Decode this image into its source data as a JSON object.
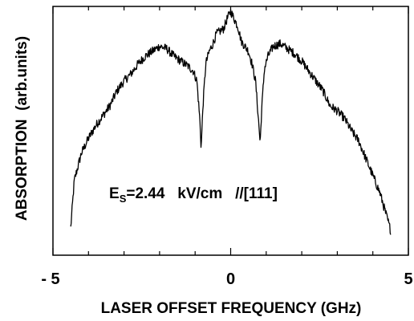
{
  "chart_data": {
    "type": "line",
    "title": "",
    "xlabel": "LASER OFFSET FREQUENCY (GHz)",
    "ylabel": "ABSORPTION  (arb.units)",
    "xlim": [
      -5,
      5
    ],
    "ylim": [
      0,
      1
    ],
    "x_ticks": [
      -5,
      0,
      5
    ],
    "x_tick_labels": [
      "- 5",
      "0",
      "5"
    ],
    "y_tick_labels": [],
    "grid": false,
    "legend": "none",
    "annotation": {
      "prefix": "E",
      "subscript": "S",
      "text": "=2.44   kV/cm   //[111]"
    },
    "series": [
      {
        "x": [
          -4.5,
          -4.4,
          -4.2,
          -4.0,
          -3.8,
          -3.6,
          -3.4,
          -3.2,
          -3.0,
          -2.8,
          -2.6,
          -2.4,
          -2.2,
          -2.0,
          -1.8,
          -1.6,
          -1.4,
          -1.2,
          -1.05,
          -0.95,
          -0.87,
          -0.83,
          -0.78,
          -0.7,
          -0.6,
          -0.5,
          -0.4,
          -0.3,
          -0.2,
          -0.1,
          0.0,
          0.1,
          0.2,
          0.3,
          0.4,
          0.5,
          0.6,
          0.7,
          0.78,
          0.83,
          0.87,
          0.95,
          1.05,
          1.2,
          1.4,
          1.6,
          1.8,
          2.0,
          2.2,
          2.4,
          2.6,
          2.8,
          3.0,
          3.2,
          3.4,
          3.6,
          3.8,
          4.0,
          4.2,
          4.4,
          4.5
        ],
        "y": [
          0.11,
          0.3,
          0.41,
          0.47,
          0.52,
          0.56,
          0.6,
          0.66,
          0.7,
          0.73,
          0.77,
          0.8,
          0.82,
          0.84,
          0.83,
          0.8,
          0.78,
          0.76,
          0.74,
          0.7,
          0.55,
          0.43,
          0.6,
          0.77,
          0.82,
          0.85,
          0.89,
          0.9,
          0.91,
          0.95,
          0.98,
          0.95,
          0.92,
          0.86,
          0.84,
          0.82,
          0.77,
          0.7,
          0.55,
          0.45,
          0.58,
          0.75,
          0.8,
          0.84,
          0.85,
          0.83,
          0.81,
          0.78,
          0.74,
          0.7,
          0.66,
          0.6,
          0.58,
          0.55,
          0.5,
          0.46,
          0.39,
          0.32,
          0.25,
          0.15,
          0.1
        ]
      }
    ]
  }
}
